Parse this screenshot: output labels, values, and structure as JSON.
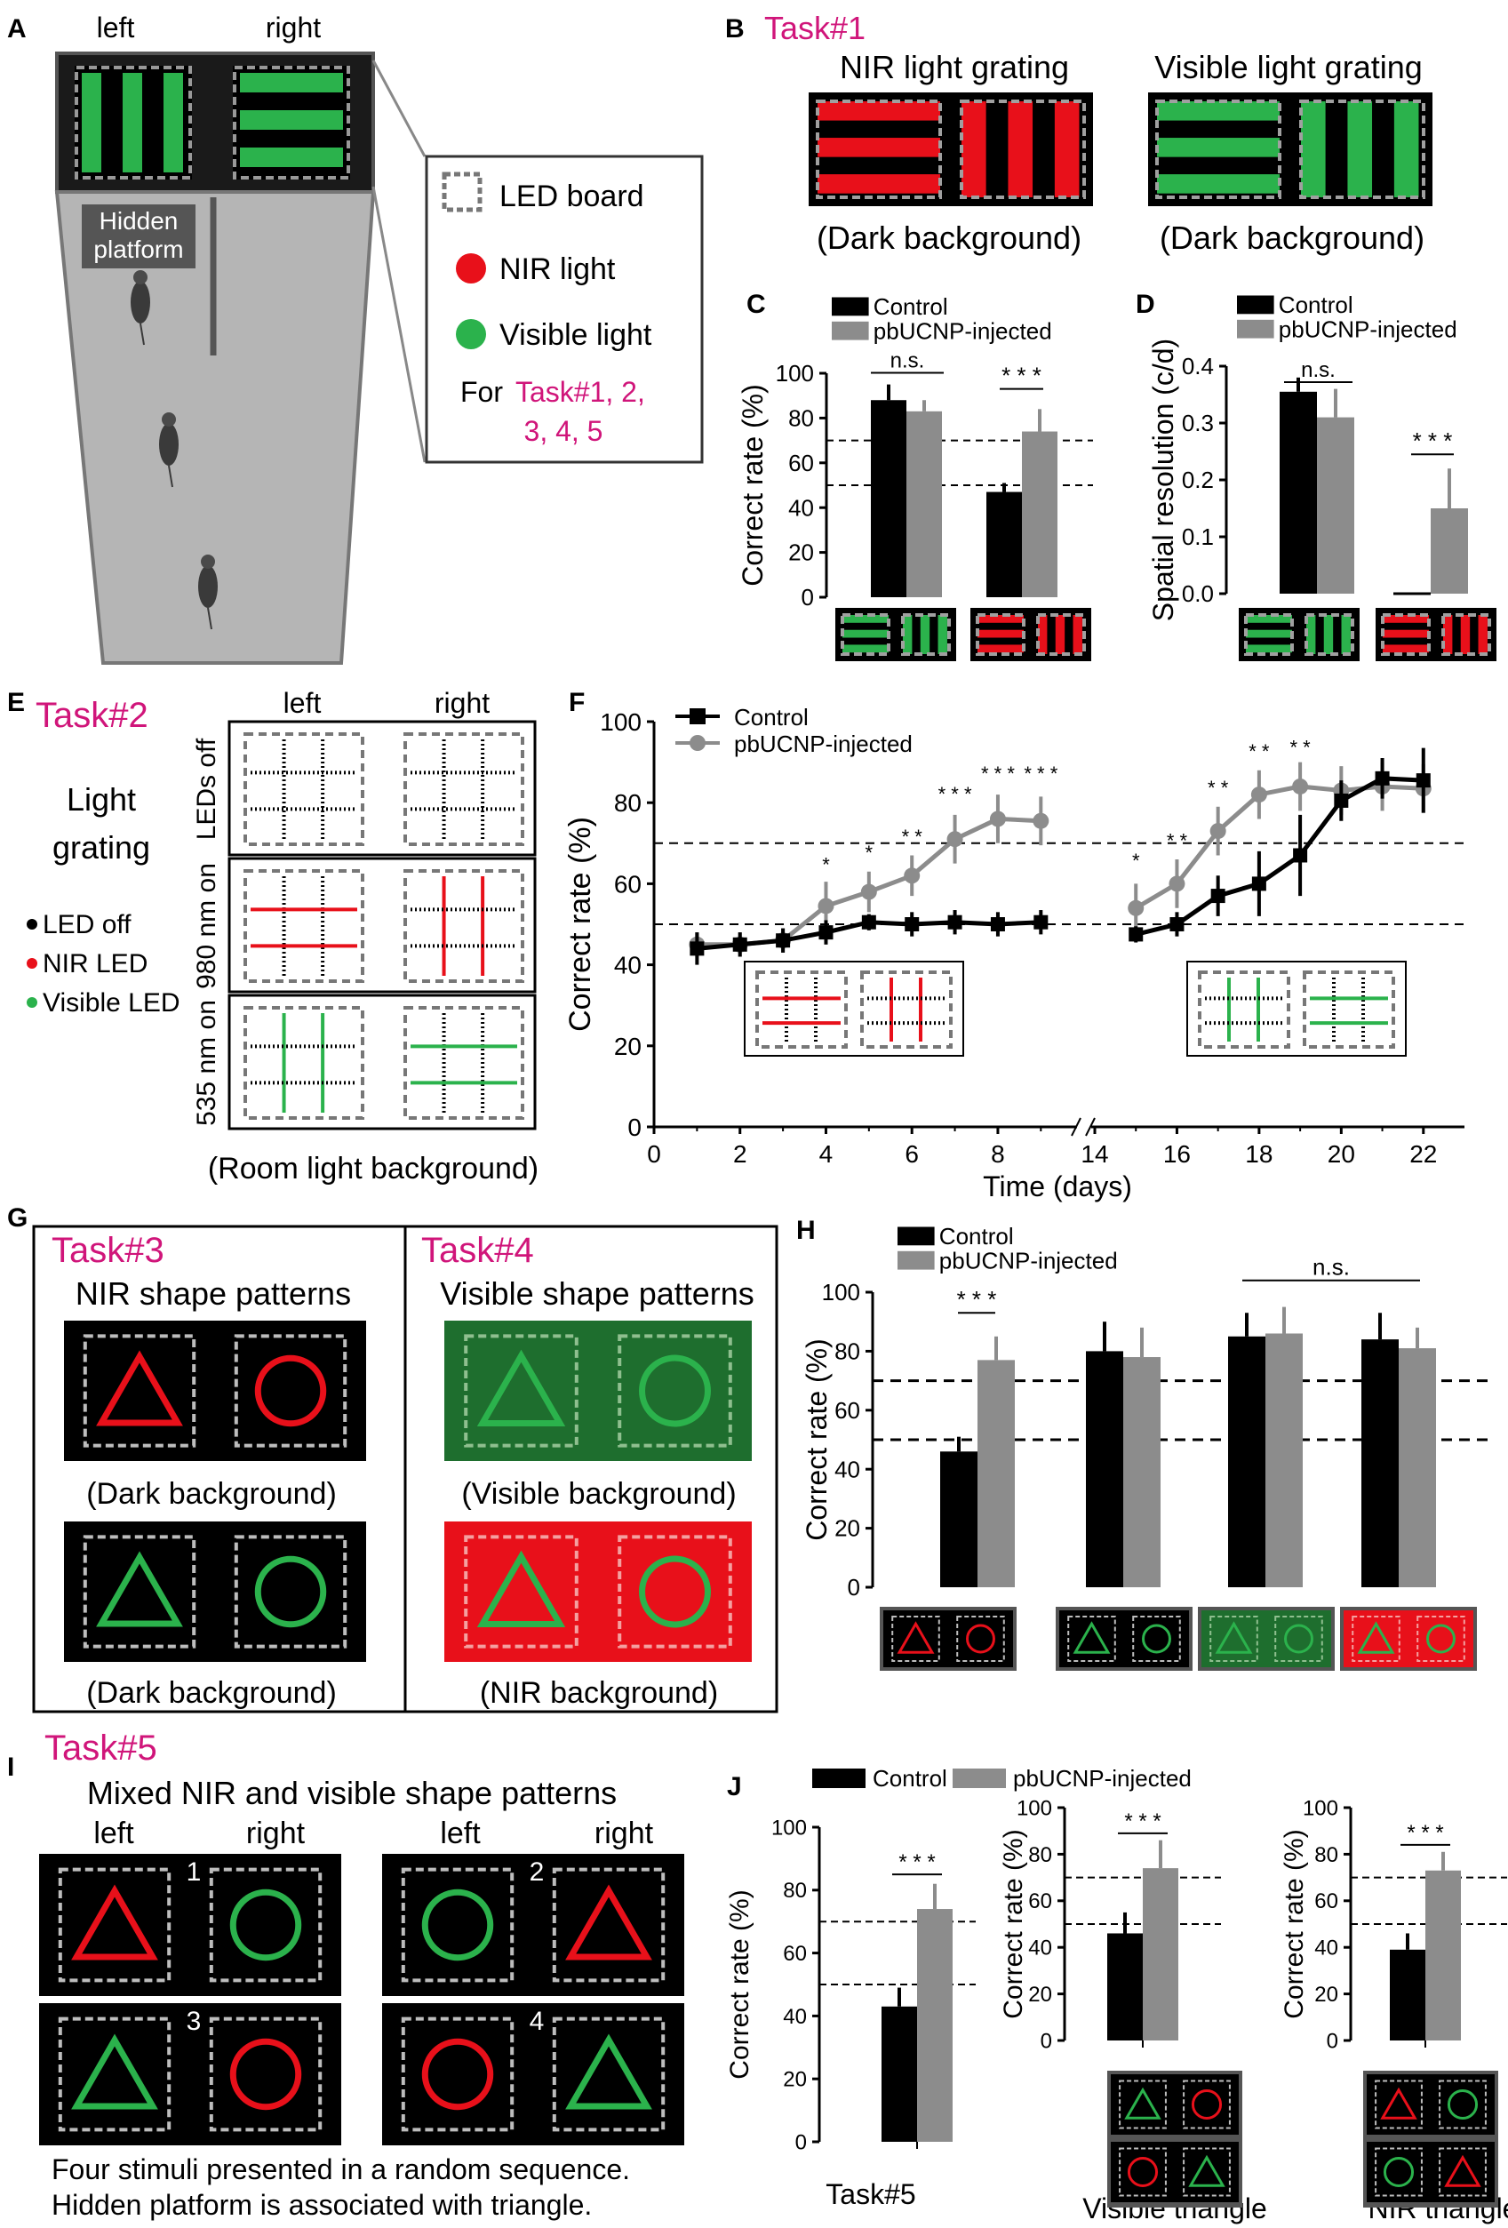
{
  "palette": {
    "nir_red": "#e8101a",
    "visible_green": "#2bb24c",
    "control": "#000000",
    "injected": "#8c8c8c",
    "task_magenta": "#d0157a",
    "dark_bg_green": "#1e6e2e"
  },
  "panel_letters": [
    "A",
    "B",
    "C",
    "D",
    "E",
    "F",
    "G",
    "H",
    "I",
    "J"
  ],
  "panel_a": {
    "left": "left",
    "right": "right",
    "hidden_platform_1": "Hidden",
    "hidden_platform_2": "platform",
    "legend": {
      "led_board": "LED board",
      "nir_light": "NIR light",
      "visible_light": "Visible light",
      "for_prefix": "For ",
      "tasks_1": "Task#1, 2,",
      "tasks_2": "3, 4, 5"
    }
  },
  "panel_b": {
    "title": "Task#1",
    "nir_title": "NIR light grating",
    "visible_title": "Visible light grating",
    "caption": "(Dark background)"
  },
  "panel_e": {
    "title": "Task#2",
    "light_1": "Light",
    "light_2": "grating",
    "legend_off": "LED off",
    "legend_nir": "NIR LED",
    "legend_vis": "Visible LED",
    "col_left": "left",
    "col_right": "right",
    "row_off": "LEDs off",
    "row_980": "980 nm on",
    "row_535": "535 nm on",
    "caption": "(Room light background)"
  },
  "panel_g": {
    "task3_title": "Task#3",
    "task3_sub": "NIR shape patterns",
    "task4_title": "Task#4",
    "task4_sub": "Visible shape patterns",
    "cap_dark": "(Dark background)",
    "cap_visible": "(Visible background)",
    "cap_nir": "(NIR background)"
  },
  "panel_i": {
    "title": "Task#5",
    "sub": "Mixed NIR and visible shape patterns",
    "left": "left",
    "right": "right",
    "nums": [
      "1",
      "2",
      "3",
      "4"
    ],
    "foot_1": "Four stimuli presented in a random sequence.",
    "foot_2": "Hidden platform is associated with triangle."
  },
  "chart_data": [
    {
      "id": "C",
      "type": "bar",
      "ylabel": "Correct rate (%)",
      "ylim": [
        0,
        100
      ],
      "yticks": [
        "0",
        "20",
        "40",
        "60",
        "80",
        "100"
      ],
      "ref_lines": [
        50,
        70
      ],
      "categories": [
        "Visible light grating",
        "NIR light grating"
      ],
      "series": [
        {
          "name": "Control",
          "values": [
            88,
            47
          ],
          "errors": [
            7,
            4
          ]
        },
        {
          "name": "pbUCNP-injected",
          "values": [
            83,
            74
          ],
          "errors": [
            5,
            10
          ]
        }
      ],
      "significance": [
        "n.s.",
        "* * *"
      ]
    },
    {
      "id": "D",
      "type": "bar",
      "ylabel": "Spatial resolution (c/d)",
      "ylim": [
        0,
        0.4
      ],
      "yticks": [
        "0.0",
        "0.1",
        "0.2",
        "0.3",
        "0.4"
      ],
      "categories": [
        "Visible light grating",
        "NIR light grating"
      ],
      "series": [
        {
          "name": "Control",
          "values": [
            0.355,
            0.0
          ],
          "errors": [
            0.025,
            0.0
          ]
        },
        {
          "name": "pbUCNP-injected",
          "values": [
            0.31,
            0.15
          ],
          "errors": [
            0.05,
            0.07
          ]
        }
      ],
      "significance": [
        "n.s.",
        "* * *"
      ]
    },
    {
      "id": "F",
      "type": "line",
      "xlabel": "Time (days)",
      "ylabel": "Correct rate (%)",
      "ylim": [
        0,
        100
      ],
      "xticks": [
        "0",
        "2",
        "4",
        "6",
        "8",
        "14",
        "16",
        "18",
        "20",
        "22"
      ],
      "yticks": [
        "0",
        "20",
        "40",
        "60",
        "80",
        "100"
      ],
      "ref_lines": [
        50,
        70
      ],
      "series": [
        {
          "name": "Control",
          "segment_1": {
            "x": [
              1,
              2,
              3,
              4,
              5,
              6,
              7,
              8,
              9
            ],
            "y": [
              44,
              45,
              46,
              48,
              50.5,
              50,
              50.5,
              50,
              50.5
            ],
            "err": [
              4,
              3,
              3,
              3,
              2,
              3,
              3,
              3,
              3
            ]
          },
          "segment_2": {
            "x": [
              15,
              16,
              17,
              18,
              19,
              20,
              21,
              22
            ],
            "y": [
              47.5,
              50,
              57,
              60,
              67,
              80.5,
              86,
              85.5
            ],
            "err": [
              2,
              3,
              5,
              8,
              10,
              5,
              5,
              8
            ]
          }
        },
        {
          "name": "pbUCNP-injected",
          "segment_1": {
            "x": [
              1,
              2,
              3,
              4,
              5,
              6,
              7,
              8,
              9
            ],
            "y": [
              45,
              45,
              46,
              54.5,
              58,
              62,
              71,
              76,
              75.5
            ],
            "err": [
              3,
              3,
              3,
              6,
              5,
              5,
              6,
              6,
              6
            ]
          },
          "segment_2": {
            "x": [
              15,
              16,
              17,
              18,
              19,
              20,
              21,
              22
            ],
            "y": [
              54,
              60,
              73,
              82,
              84,
              83,
              84,
              83.5
            ],
            "err": [
              6,
              6,
              6,
              6,
              6,
              6,
              6,
              6
            ]
          }
        }
      ],
      "stars": [
        "*",
        "*",
        "* *",
        "* * *",
        "* * *",
        "* * *",
        "*",
        "* *",
        "* *",
        "* *",
        "* *"
      ]
    },
    {
      "id": "H",
      "type": "bar",
      "ylabel": "Correct rate (%)",
      "ylim": [
        0,
        100
      ],
      "yticks": [
        "0",
        "20",
        "40",
        "60",
        "80",
        "100"
      ],
      "ref_lines": [
        50,
        70
      ],
      "categories": [
        "NIR shapes (dark)",
        "Visible shapes (dark)",
        "Visible shapes (visible bg)",
        "Visible shapes (NIR bg)"
      ],
      "series": [
        {
          "name": "Control",
          "values": [
            46,
            80,
            85,
            84
          ],
          "errors": [
            5,
            10,
            8,
            9
          ]
        },
        {
          "name": "pbUCNP-injected",
          "values": [
            77,
            78,
            86,
            81
          ],
          "errors": [
            8,
            10,
            9,
            7
          ]
        }
      ],
      "significance": [
        "* * *",
        "n.s."
      ]
    },
    {
      "id": "J",
      "type": "bar",
      "legend": [
        "Control",
        "pbUCNP-injected"
      ],
      "subplots": [
        {
          "label": "Task#5",
          "ylabel": "Correct rate (%)",
          "ylim": [
            0,
            100
          ],
          "yticks": [
            "0",
            "20",
            "40",
            "60",
            "80",
            "100"
          ],
          "values": [
            43,
            74
          ],
          "errors": [
            6,
            8
          ],
          "significance": "* * *"
        },
        {
          "label": "Visible triangle",
          "ylabel": "Correct rate (%)",
          "ylim": [
            0,
            100
          ],
          "yticks": [
            "0",
            "20",
            "40",
            "60",
            "80",
            "100"
          ],
          "values": [
            46,
            74
          ],
          "errors": [
            9,
            12
          ],
          "significance": "* * *"
        },
        {
          "label": "NIR triangle",
          "ylabel": "Correct rate (%)",
          "ylim": [
            0,
            100
          ],
          "yticks": [
            "0",
            "20",
            "40",
            "60",
            "80",
            "100"
          ],
          "values": [
            39,
            73
          ],
          "errors": [
            7,
            8
          ],
          "significance": "* * *"
        }
      ],
      "ref_lines": [
        50,
        70
      ]
    }
  ]
}
